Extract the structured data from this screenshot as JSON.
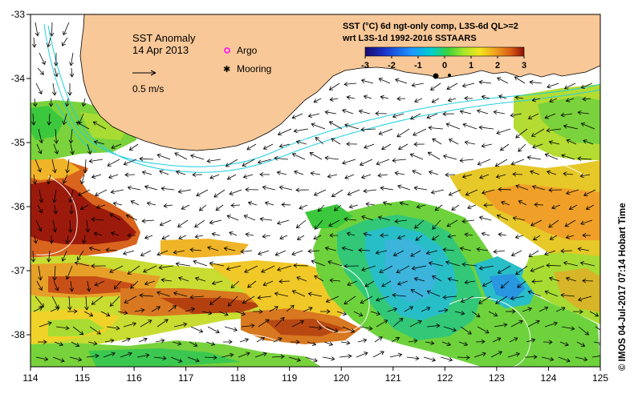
{
  "map": {
    "title": "SST Anomaly",
    "date": "14 Apr 2013",
    "scale_label": "0.5 m/s",
    "legend": [
      {
        "label": "Argo",
        "color": "#ff00ff"
      },
      {
        "label": "Mooring",
        "color": "#000000"
      }
    ],
    "product_line1": "SST (°C) 6d ngt-only comp, L3S-6d QL>=2",
    "product_line2": "wrt L3S-1d 1992-2016 SSTAARS",
    "colorbar": {
      "ticks": [
        "-3",
        "-2",
        "-1",
        "0",
        "1",
        "2",
        "3"
      ],
      "range": [
        -3,
        3
      ],
      "colors": [
        "#1a0b6e",
        "#1933c7",
        "#1e90ff",
        "#00d0d0",
        "#3cd23c",
        "#a8e62a",
        "#f5e61e",
        "#f0a01e",
        "#d85a14",
        "#8c1008"
      ]
    },
    "x_ticks": [
      "114",
      "115",
      "116",
      "117",
      "118",
      "119",
      "120",
      "121",
      "122",
      "123",
      "124",
      "125"
    ],
    "y_ticks": [
      "-33",
      "-34",
      "-35",
      "-36",
      "-37",
      "-38"
    ],
    "lon_range": [
      114,
      125
    ],
    "lat_range": [
      -38.5,
      -33
    ],
    "credit": "© IMOS 04-Jul-2017 07:14 Hobart Time",
    "land_color": "#f8c898"
  }
}
